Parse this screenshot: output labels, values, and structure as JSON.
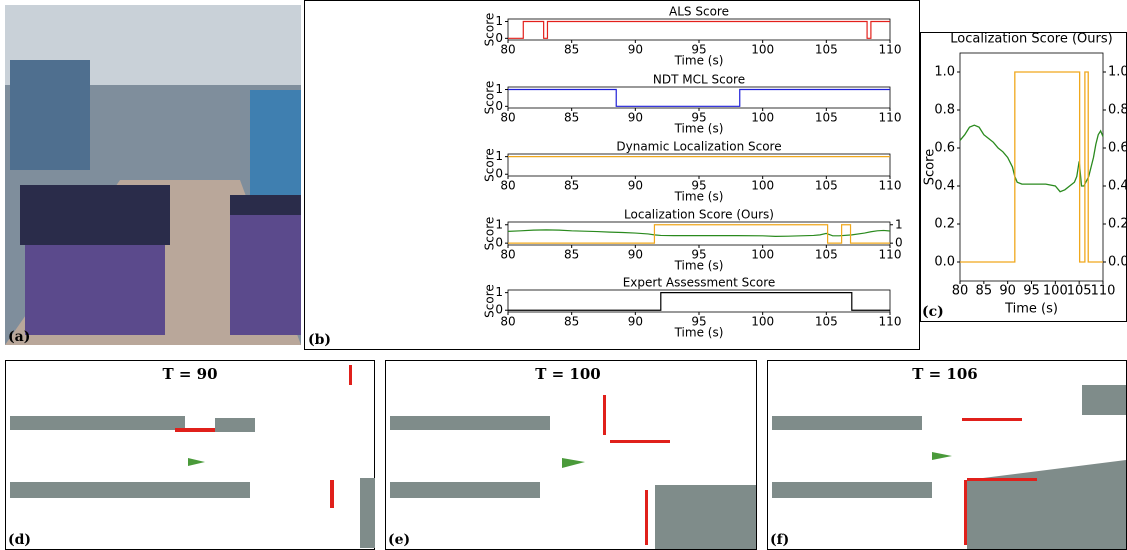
{
  "panels": [
    "(a)",
    "(b)",
    "(c)"
  ],
  "maps": [
    {
      "label": "(d)",
      "title": "T = 90"
    },
    {
      "label": "(e)",
      "title": "T = 100"
    },
    {
      "label": "(f)",
      "title": "T = 106"
    }
  ],
  "chart_data": [
    {
      "type": "line",
      "title": "ALS Score",
      "xlabel": "Time (s)",
      "ylabel": "Score",
      "xlim": [
        80,
        110
      ],
      "xticks": [
        80,
        85,
        90,
        95,
        100,
        105,
        110
      ],
      "ylim": [
        -0.1,
        1.15
      ],
      "yticks": [
        0,
        1
      ],
      "series": [
        {
          "color": "#e3201b",
          "x": [
            80,
            81.2,
            81.2,
            82.8,
            82.8,
            83.1,
            83.1,
            108.2,
            108.2,
            108.5,
            108.5,
            110
          ],
          "values": [
            0,
            0,
            1,
            1,
            0,
            0,
            1,
            1,
            0,
            0,
            1,
            1
          ]
        }
      ]
    },
    {
      "type": "line",
      "title": "NDT MCL Score",
      "xlabel": "Time (s)",
      "ylabel": "Score",
      "xlim": [
        80,
        110
      ],
      "xticks": [
        80,
        85,
        90,
        95,
        100,
        105,
        110
      ],
      "ylim": [
        -0.1,
        1.15
      ],
      "yticks": [
        0,
        1
      ],
      "series": [
        {
          "color": "#1f1fd8",
          "x": [
            80,
            88.5,
            88.5,
            98.2,
            98.2,
            110
          ],
          "values": [
            1,
            1,
            0,
            0,
            1,
            1
          ]
        }
      ]
    },
    {
      "type": "line",
      "title": "Dynamic Localization Score",
      "xlabel": "Time (s)",
      "ylabel": "Score",
      "xlim": [
        80,
        110
      ],
      "xticks": [
        80,
        85,
        90,
        95,
        100,
        105,
        110
      ],
      "ylim": [
        -0.1,
        1.15
      ],
      "yticks": [
        0,
        1
      ],
      "series": [
        {
          "color": "#f0a81c",
          "x": [
            80,
            110
          ],
          "values": [
            1,
            1
          ]
        }
      ]
    },
    {
      "type": "line",
      "title": "Localization Score (Ours)",
      "xlabel": "Time (s)",
      "ylabel": "Score",
      "xlim": [
        80,
        110
      ],
      "xticks": [
        80,
        85,
        90,
        95,
        100,
        105,
        110
      ],
      "ylim": [
        -0.1,
        1.15
      ],
      "yticks": [
        0,
        1
      ],
      "y2lim": [
        -0.1,
        1.15
      ],
      "y2ticks": [
        0,
        1
      ],
      "series": [
        {
          "color": "#2a8a1e",
          "x": [
            80,
            81,
            82,
            83,
            84,
            85,
            86,
            87,
            88,
            89,
            90,
            91,
            91.5,
            92,
            93,
            94,
            96,
            98,
            100,
            101,
            102,
            103,
            104,
            104.5,
            105,
            105.5,
            106,
            107,
            108,
            108.5,
            109,
            109.5,
            110
          ],
          "values": [
            0.64,
            0.67,
            0.71,
            0.72,
            0.71,
            0.67,
            0.65,
            0.63,
            0.6,
            0.58,
            0.55,
            0.5,
            0.45,
            0.42,
            0.41,
            0.41,
            0.41,
            0.41,
            0.4,
            0.37,
            0.38,
            0.4,
            0.42,
            0.45,
            0.53,
            0.4,
            0.4,
            0.45,
            0.55,
            0.62,
            0.67,
            0.69,
            0.66
          ]
        },
        {
          "color": "#f0a81c",
          "axis": "y2",
          "x": [
            80,
            91.5,
            91.5,
            105.1,
            105.1,
            106.2,
            106.2,
            106.9,
            106.9,
            110
          ],
          "values": [
            0,
            0,
            1,
            1,
            0,
            0,
            1,
            1,
            0,
            0
          ]
        }
      ]
    },
    {
      "type": "line",
      "title": "Expert Assessment Score",
      "xlabel": "Time (s)",
      "ylabel": "Score",
      "xlim": [
        80,
        110
      ],
      "xticks": [
        80,
        85,
        90,
        95,
        100,
        105,
        110
      ],
      "ylim": [
        -0.1,
        1.15
      ],
      "yticks": [
        0,
        1
      ],
      "series": [
        {
          "color": "#000000",
          "x": [
            80,
            92,
            92,
            107,
            107,
            110
          ],
          "values": [
            0,
            0,
            1,
            1,
            0,
            0
          ]
        }
      ]
    },
    {
      "type": "line",
      "title": "Localization Score (Ours)",
      "xlabel": "Time (s)",
      "ylabel": "Score",
      "xlim": [
        80,
        110
      ],
      "xticks": [
        80,
        85,
        90,
        95,
        100,
        105,
        110
      ],
      "ylim": [
        -0.1,
        1.1
      ],
      "yticks": [
        {
          "value": 0,
          "label": "0.0"
        },
        {
          "value": 0.2,
          "label": "0.2"
        },
        {
          "value": 0.4,
          "label": "0.4"
        },
        {
          "value": 0.6,
          "label": "0.6"
        },
        {
          "value": 0.8,
          "label": "0.8"
        },
        {
          "value": 1,
          "label": "1.0"
        }
      ],
      "y2lim": [
        -0.1,
        1.1
      ],
      "y2ticks": [
        {
          "value": 0,
          "label": "0.0"
        },
        {
          "value": 0.2,
          "label": "0.2"
        },
        {
          "value": 0.4,
          "label": "0.4"
        },
        {
          "value": 0.6,
          "label": "0.6"
        },
        {
          "value": 0.8,
          "label": "0.8"
        },
        {
          "value": 1,
          "label": "1.0"
        }
      ],
      "series": [
        {
          "color": "#2a8a1e",
          "x": [
            80,
            81,
            82,
            83,
            84,
            85,
            86,
            87,
            88,
            89,
            90,
            91,
            91.5,
            92,
            93,
            94,
            96,
            98,
            100,
            101,
            102,
            103,
            104,
            104.5,
            105,
            105.5,
            106,
            107,
            108,
            108.5,
            109,
            109.5,
            110
          ],
          "values": [
            0.64,
            0.67,
            0.71,
            0.72,
            0.71,
            0.67,
            0.65,
            0.63,
            0.6,
            0.58,
            0.55,
            0.5,
            0.45,
            0.42,
            0.41,
            0.41,
            0.41,
            0.41,
            0.4,
            0.37,
            0.38,
            0.4,
            0.42,
            0.45,
            0.53,
            0.4,
            0.4,
            0.45,
            0.55,
            0.62,
            0.67,
            0.69,
            0.66
          ]
        },
        {
          "color": "#f0a81c",
          "axis": "y2",
          "x": [
            80,
            91.5,
            91.5,
            105.1,
            105.1,
            106.2,
            106.2,
            106.9,
            106.9,
            110
          ],
          "values": [
            0,
            0,
            1,
            1,
            0,
            0,
            1,
            1,
            0,
            0
          ]
        }
      ]
    }
  ]
}
